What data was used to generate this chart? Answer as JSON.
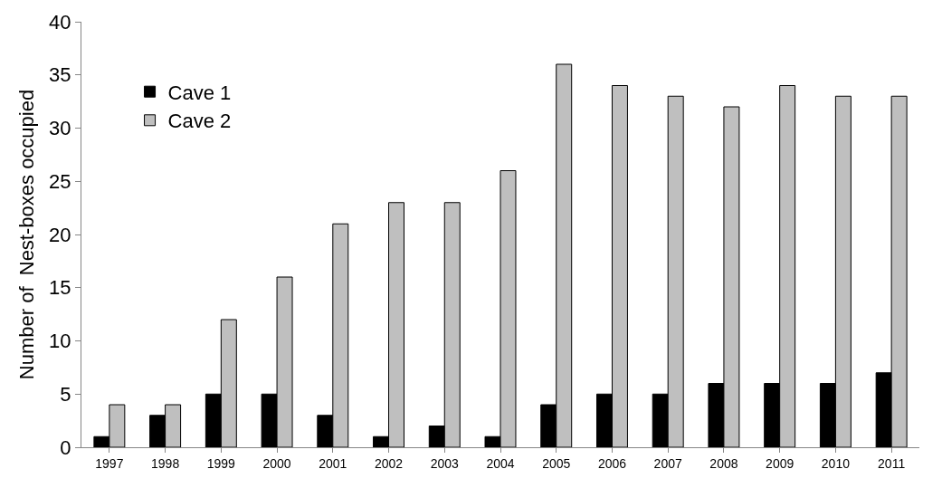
{
  "chart_data": {
    "type": "bar",
    "ylabel": "Number of  Nest-boxes occupied",
    "categories": [
      "1997",
      "1998",
      "1999",
      "2000",
      "2001",
      "2002",
      "2003",
      "2004",
      "2005",
      "2006",
      "2007",
      "2008",
      "2009",
      "2010",
      "2011"
    ],
    "series": [
      {
        "name": "Cave 1",
        "color": "#000000",
        "values": [
          1,
          3,
          5,
          5,
          3,
          1,
          2,
          1,
          4,
          5,
          5,
          6,
          6,
          6,
          7
        ]
      },
      {
        "name": "Cave 2",
        "color": "#bfbfbf",
        "values": [
          4,
          4,
          12,
          16,
          21,
          23,
          23,
          26,
          36,
          34,
          33,
          32,
          34,
          33,
          33
        ]
      }
    ],
    "ylim": [
      0,
      40
    ],
    "yticks": [
      0,
      5,
      10,
      15,
      20,
      25,
      30,
      35,
      40
    ],
    "grid": false,
    "legend": "top left"
  }
}
